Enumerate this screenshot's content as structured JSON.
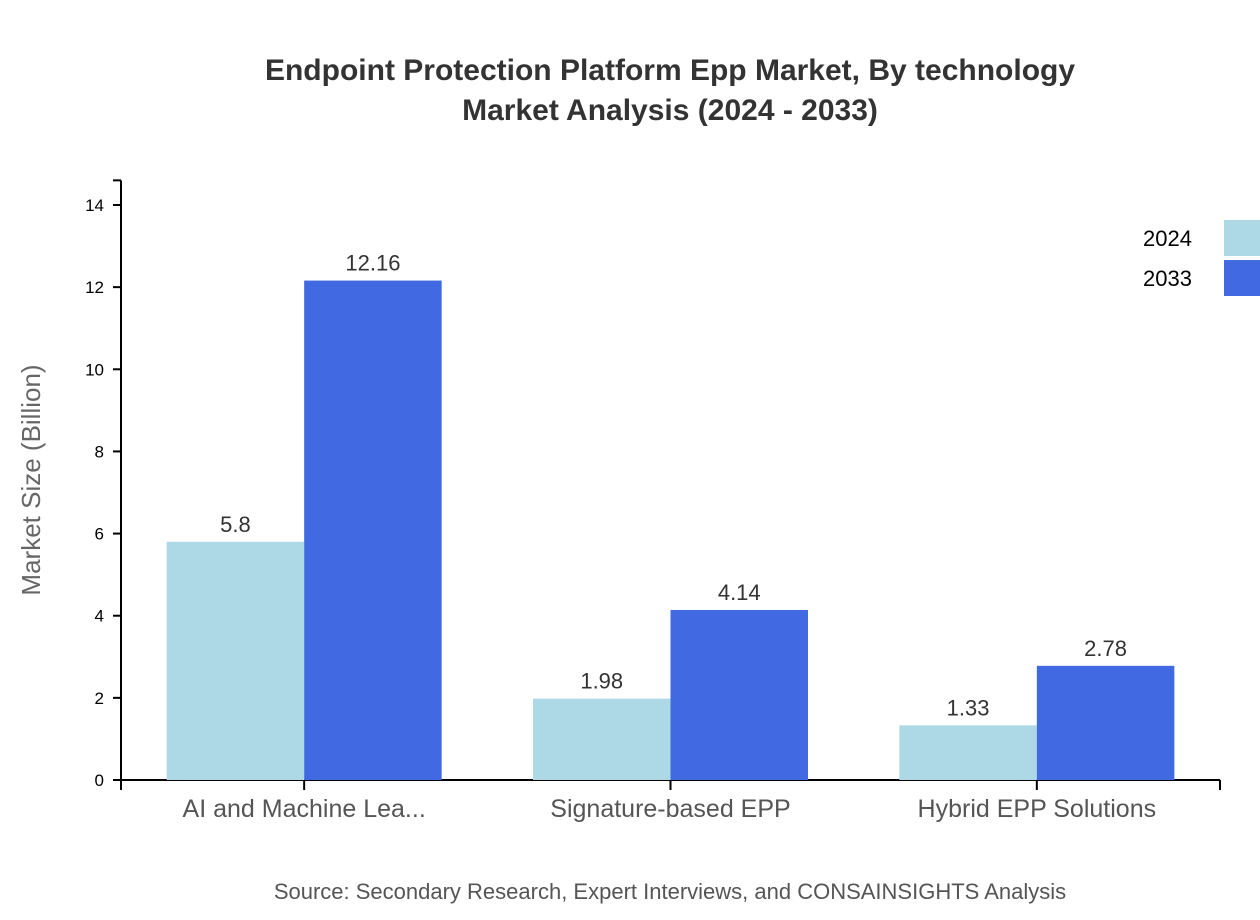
{
  "chart_data": {
    "type": "bar",
    "title": [
      "Endpoint Protection Platform Epp Market, By technology",
      "Market Analysis (2024 - 2033)"
    ],
    "xlabel": "",
    "ylabel": "Market Size (Billion)",
    "categories": [
      "AI and Machine Lea...",
      "Signature-based EPP",
      "Hybrid EPP Solutions"
    ],
    "series": [
      {
        "name": "2024",
        "color": "#add8e6",
        "values": [
          5.8,
          1.98,
          1.33
        ],
        "labels": [
          "5.8",
          "1.98",
          "1.33"
        ]
      },
      {
        "name": "2033",
        "color": "#4169e1",
        "values": [
          12.16,
          4.14,
          2.78
        ],
        "labels": [
          "12.16",
          "4.14",
          "2.78"
        ]
      }
    ],
    "ylim": [
      0,
      14.6
    ],
    "yticks": [
      0,
      2,
      4,
      6,
      8,
      10,
      12,
      14
    ],
    "grid": false,
    "legend_position": "top-right",
    "source": "Source: Secondary Research, Expert Interviews, and CONSAINSIGHTS Analysis"
  }
}
